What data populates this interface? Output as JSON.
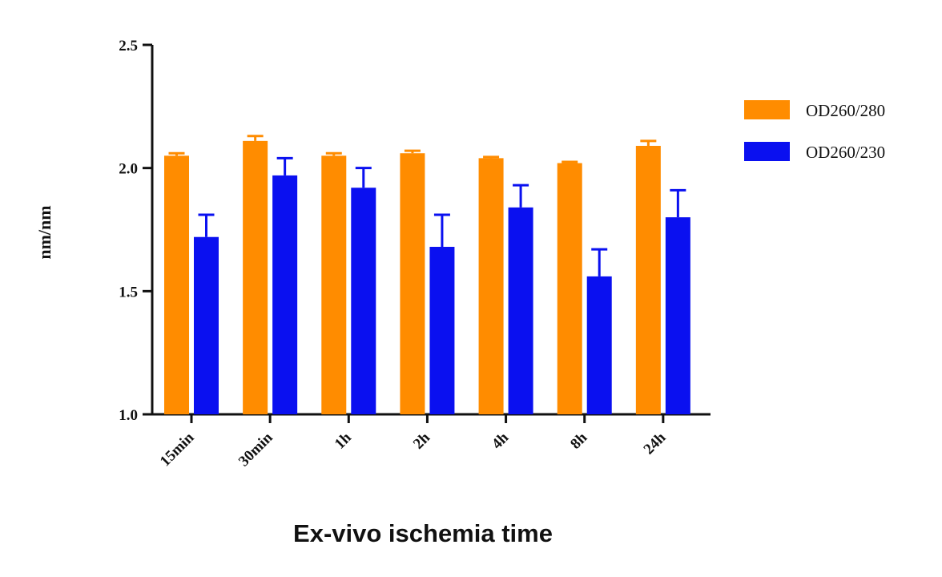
{
  "chart_data": {
    "type": "bar",
    "categories": [
      "15min",
      "30min",
      "1h",
      "2h",
      "4h",
      "8h",
      "24h"
    ],
    "series": [
      {
        "name": "OD260/280",
        "color": "#ff8c00",
        "values": [
          2.05,
          2.11,
          2.05,
          2.06,
          2.04,
          2.02,
          2.09
        ],
        "errors": [
          0.01,
          0.02,
          0.01,
          0.01,
          0.005,
          0.005,
          0.02
        ]
      },
      {
        "name": "OD260/230",
        "color": "#0a10f0",
        "values": [
          1.72,
          1.97,
          1.92,
          1.68,
          1.84,
          1.56,
          1.8
        ],
        "errors": [
          0.09,
          0.07,
          0.08,
          0.13,
          0.09,
          0.11,
          0.11
        ]
      }
    ],
    "y_ticks": [
      "1.0",
      "1.5",
      "2.0",
      "2.5"
    ],
    "ylim": [
      1.0,
      2.5
    ],
    "xlabel": "Ex-vivo ischemia time",
    "ylabel": "nm/nm",
    "title": "",
    "legend_position": "right",
    "grid": false
  }
}
